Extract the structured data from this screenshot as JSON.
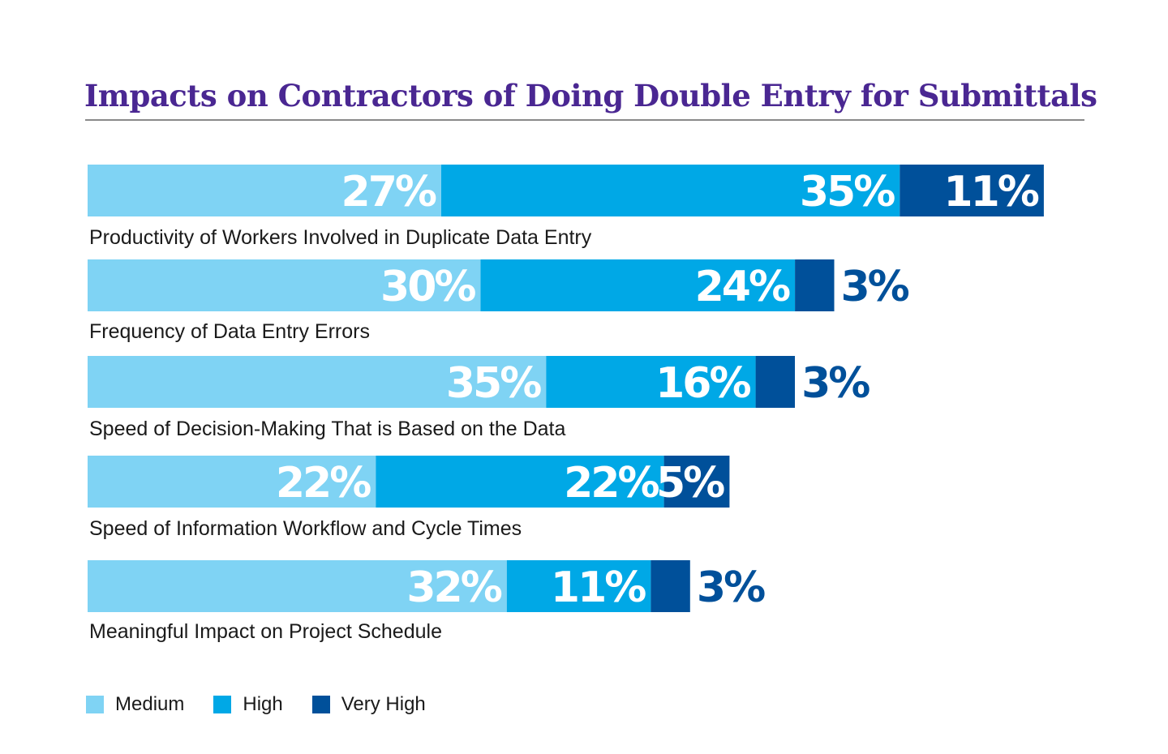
{
  "colors": {
    "title": "#4a2792",
    "medium": "#7fd3f4",
    "high": "#00a8e6",
    "very_high": "#00509a",
    "inside_label": "#ffffff",
    "outside_label": "#00509a",
    "category_label": "#1a1a1a"
  },
  "chart_data": {
    "type": "bar",
    "orientation": "horizontal",
    "stacked": true,
    "title": "Impacts on Contractors of Doing Double Entry for Submittals",
    "categories": [
      "Productivity of Workers Involved in Duplicate Data Entry",
      "Frequency of Data Entry Errors",
      "Speed of Decision-Making That is Based on the Data",
      "Speed of Information Workflow and Cycle Times",
      "Meaningful Impact on Project Schedule"
    ],
    "series": [
      {
        "name": "Medium",
        "values": [
          27,
          30,
          35,
          22,
          32
        ],
        "labels": [
          "27%",
          "30%",
          "35%",
          "22%",
          "32%"
        ]
      },
      {
        "name": "High",
        "values": [
          35,
          24,
          16,
          22,
          11
        ],
        "labels": [
          "35%",
          "24%",
          "16%",
          "22%",
          "11%"
        ]
      },
      {
        "name": "Very High",
        "values": [
          11,
          3,
          3,
          5,
          3
        ],
        "labels": [
          "11%",
          "3%",
          "3%",
          "5%",
          "3%"
        ]
      }
    ],
    "unit": "%",
    "legend_position": "bottom-left",
    "grid": false
  }
}
